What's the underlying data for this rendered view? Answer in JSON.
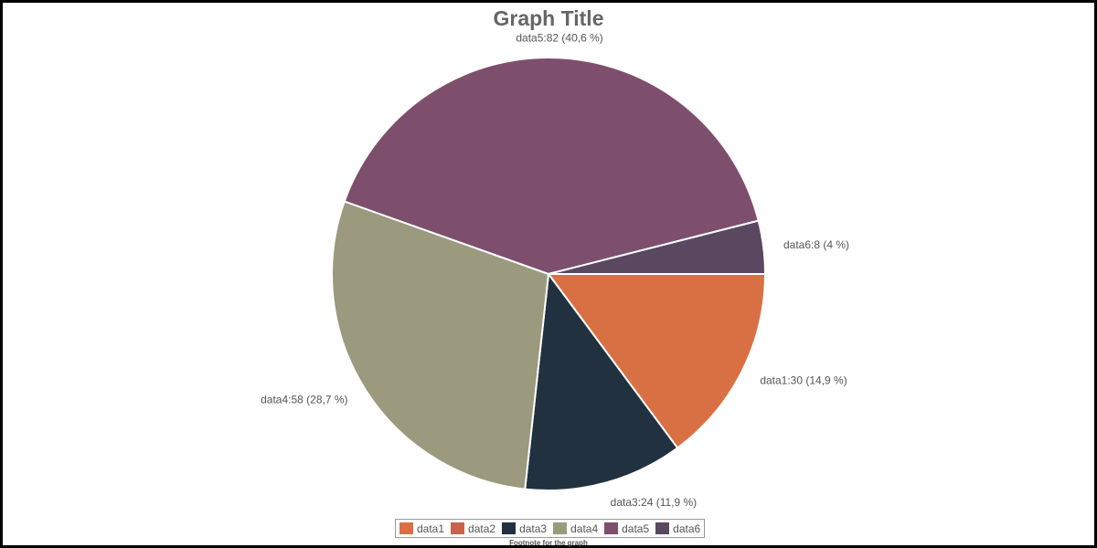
{
  "chart_data": {
    "type": "pie",
    "title": "Graph Title",
    "footnote": "Footnote for the graph",
    "legend_position": "bottom",
    "slices": [
      {
        "name": "data1",
        "value": 30,
        "label": "data1:30 (14,9 %)",
        "color": "#d97043"
      },
      {
        "name": "data2",
        "value": 0,
        "label": "",
        "color": "#c8644e"
      },
      {
        "name": "data3",
        "value": 24,
        "label": "data3:24 (11,9 %)",
        "color": "#22313f"
      },
      {
        "name": "data4",
        "value": 58,
        "label": "data4:58 (28,7 %)",
        "color": "#9b997e"
      },
      {
        "name": "data5",
        "value": 82,
        "label": "data5:82 (40,6 %)",
        "color": "#7d4f6d"
      },
      {
        "name": "data6",
        "value": 8,
        "label": "data6:8 (4 %)",
        "color": "#594860"
      }
    ]
  }
}
